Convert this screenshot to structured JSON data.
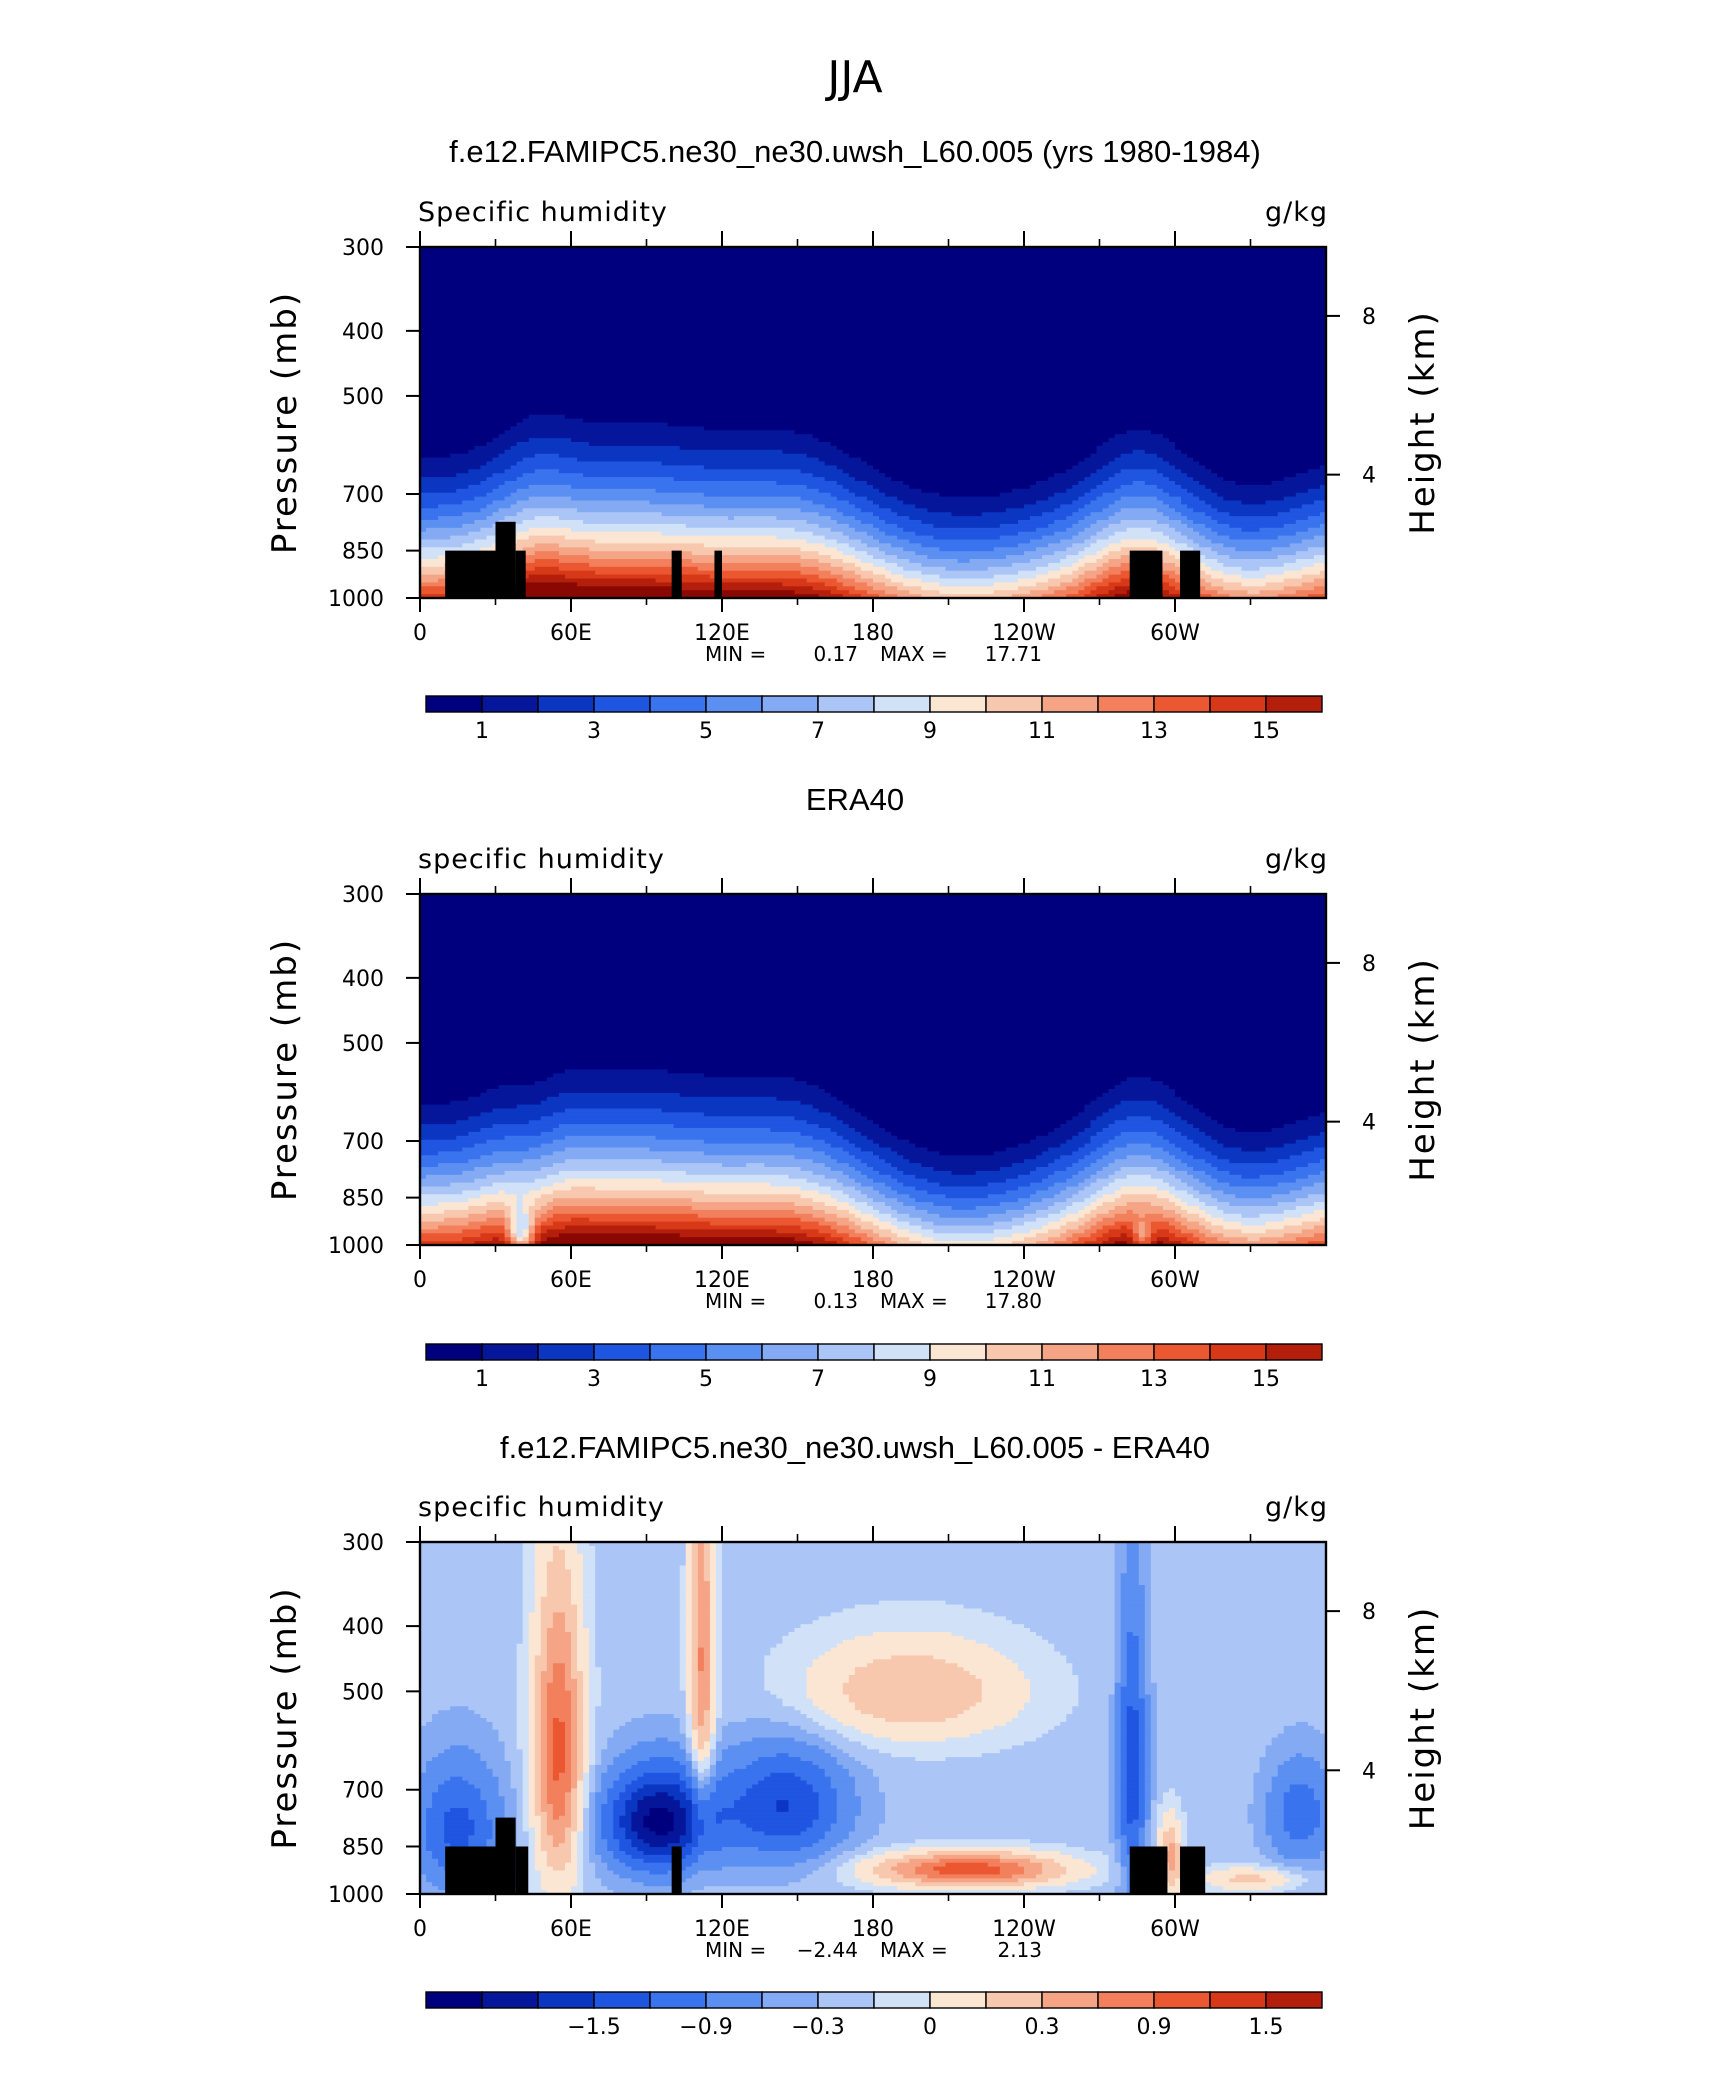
{
  "figure": {
    "season_title": "JJA"
  },
  "chart_data": [
    {
      "type": "heatmap",
      "title": "f.e12.FAMIPC5.ne30_ne30.uwsh_L60.005 (yrs 1980-1984)",
      "left_label": "Specific humidity",
      "units": "g/kg",
      "xlabel": "",
      "ylabel": "Pressure (mb)",
      "y2label": "Height (km)",
      "x_ticks": [
        "0",
        "60E",
        "120E",
        "180",
        "120W",
        "60W"
      ],
      "y_ticks": [
        "300",
        "400",
        "500",
        "700",
        "850",
        "1000"
      ],
      "y2_ticks": [
        "8",
        "4"
      ],
      "stats": {
        "min_label": "MIN =",
        "min": "0.17",
        "max_label": "MAX =",
        "max": "17.71"
      },
      "colorbar_labels": [
        "1",
        "3",
        "5",
        "7",
        "9",
        "11",
        "13",
        "15"
      ],
      "ylim": [
        1000,
        300
      ],
      "xlim": [
        0,
        360
      ],
      "field": "moisture",
      "variant": "model",
      "terrain": [
        [
          10,
          30,
          850
        ],
        [
          30,
          38,
          770
        ],
        [
          38,
          42,
          850
        ],
        [
          100,
          104,
          850
        ],
        [
          117,
          120,
          850
        ],
        [
          282,
          295,
          850
        ],
        [
          302,
          310,
          850
        ]
      ]
    },
    {
      "type": "heatmap",
      "title": "ERA40",
      "left_label": "specific humidity",
      "units": "g/kg",
      "xlabel": "",
      "ylabel": "Pressure (mb)",
      "y2label": "Height (km)",
      "x_ticks": [
        "0",
        "60E",
        "120E",
        "180",
        "120W",
        "60W"
      ],
      "y_ticks": [
        "300",
        "400",
        "500",
        "700",
        "850",
        "1000"
      ],
      "y2_ticks": [
        "8",
        "4"
      ],
      "stats": {
        "min_label": "MIN =",
        "min": "0.13",
        "max_label": "MAX =",
        "max": "17.80"
      },
      "colorbar_labels": [
        "1",
        "3",
        "5",
        "7",
        "9",
        "11",
        "13",
        "15"
      ],
      "ylim": [
        1000,
        300
      ],
      "xlim": [
        0,
        360
      ],
      "field": "moisture",
      "variant": "obs",
      "terrain": []
    },
    {
      "type": "heatmap",
      "title": "f.e12.FAMIPC5.ne30_ne30.uwsh_L60.005 - ERA40",
      "left_label": "specific humidity",
      "units": "g/kg",
      "xlabel": "",
      "ylabel": "Pressure (mb)",
      "y2label": "Height (km)",
      "x_ticks": [
        "0",
        "60E",
        "120E",
        "180",
        "120W",
        "60W"
      ],
      "y_ticks": [
        "300",
        "400",
        "500",
        "700",
        "850",
        "1000"
      ],
      "y2_ticks": [
        "8",
        "4"
      ],
      "stats": {
        "min_label": "MIN =",
        "min": "−2.44",
        "max_label": "MAX =",
        "max": "2.13"
      },
      "colorbar_labels": [
        "−1.5",
        "−0.9",
        "−0.3",
        "0",
        "0.3",
        "0.9",
        "1.5"
      ],
      "ylim": [
        1000,
        300
      ],
      "xlim": [
        0,
        360
      ],
      "field": "difference",
      "variant": "diff",
      "terrain": [
        [
          10,
          30,
          850
        ],
        [
          30,
          38,
          770
        ],
        [
          38,
          43,
          850
        ],
        [
          100,
          104,
          850
        ],
        [
          282,
          297,
          850
        ],
        [
          302,
          312,
          850
        ]
      ]
    }
  ],
  "colors": {
    "palette": [
      "#00007f",
      "#06169a",
      "#0a36c2",
      "#1f55e0",
      "#3a73ee",
      "#5c8ff2",
      "#84aaf4",
      "#abc6f6",
      "#d1e1f8",
      "#fbe6d4",
      "#f8c8ae",
      "#f5a586",
      "#f2805d",
      "#ea5731",
      "#d63818",
      "#b41f0b",
      "#8a0803"
    ],
    "terrain": "#000000"
  }
}
